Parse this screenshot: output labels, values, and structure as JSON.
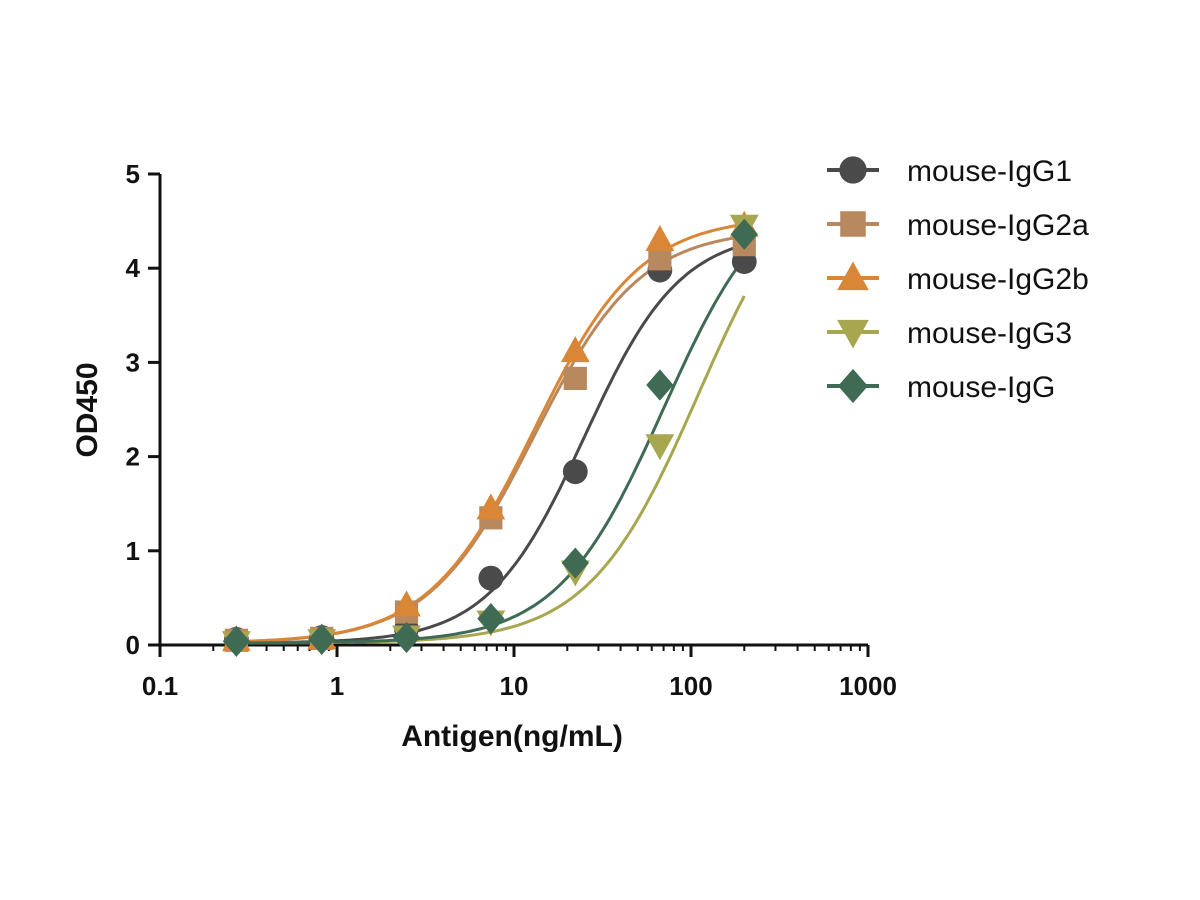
{
  "chart_data": {
    "type": "scatter",
    "xlabel": "Antigen(ng/mL)",
    "ylabel": "OD450",
    "xscale": "log",
    "xlim": [
      0.1,
      1000
    ],
    "ylim": [
      0,
      5
    ],
    "xticks": [
      0.1,
      1,
      10,
      100,
      1000
    ],
    "xtick_labels": [
      "0.1",
      "1",
      "10",
      "100",
      "1000"
    ],
    "yticks": [
      0,
      1,
      2,
      3,
      4,
      5
    ],
    "ytick_labels": [
      "0",
      "1",
      "2",
      "3",
      "4",
      "5"
    ],
    "grid": false,
    "legend_position": "right",
    "x": [
      0.27,
      0.82,
      2.47,
      7.4,
      22.2,
      66.7,
      200
    ],
    "series": [
      {
        "name": "mouse-IgG1",
        "marker": "circle",
        "color": "#4a4a4a",
        "values": [
          0.06,
          0.08,
          0.17,
          0.71,
          1.84,
          3.98,
          4.07
        ],
        "fit": {
          "bottom": 0.02,
          "top": 4.4,
          "ec50": 25,
          "hill": 1.6
        }
      },
      {
        "name": "mouse-IgG2a",
        "marker": "square",
        "color": "#b8895e",
        "values": [
          0.05,
          0.07,
          0.35,
          1.35,
          2.83,
          4.1,
          4.25
        ],
        "fit": {
          "bottom": 0.02,
          "top": 4.42,
          "ec50": 13,
          "hill": 1.45
        }
      },
      {
        "name": "mouse-IgG2b",
        "marker": "triangle-up",
        "color": "#d98637",
        "values": [
          0.05,
          0.07,
          0.42,
          1.45,
          3.12,
          4.3,
          4.45
        ],
        "fit": {
          "bottom": 0.02,
          "top": 4.55,
          "ec50": 13,
          "hill": 1.45
        }
      },
      {
        "name": "mouse-IgG3",
        "marker": "triangle-down",
        "color": "#a8a64e",
        "values": [
          0.03,
          0.05,
          0.09,
          0.25,
          0.78,
          2.12,
          4.45
        ],
        "fit": {
          "bottom": 0.02,
          "top": 5.3,
          "ec50": 110,
          "hill": 1.4
        }
      },
      {
        "name": "mouse-IgG",
        "marker": "diamond",
        "color": "#3f6b55",
        "values": [
          0.04,
          0.06,
          0.08,
          0.28,
          0.87,
          2.76,
          4.36
        ],
        "fit": {
          "bottom": 0.02,
          "top": 5.0,
          "ec50": 70,
          "hill": 1.45
        }
      }
    ]
  }
}
